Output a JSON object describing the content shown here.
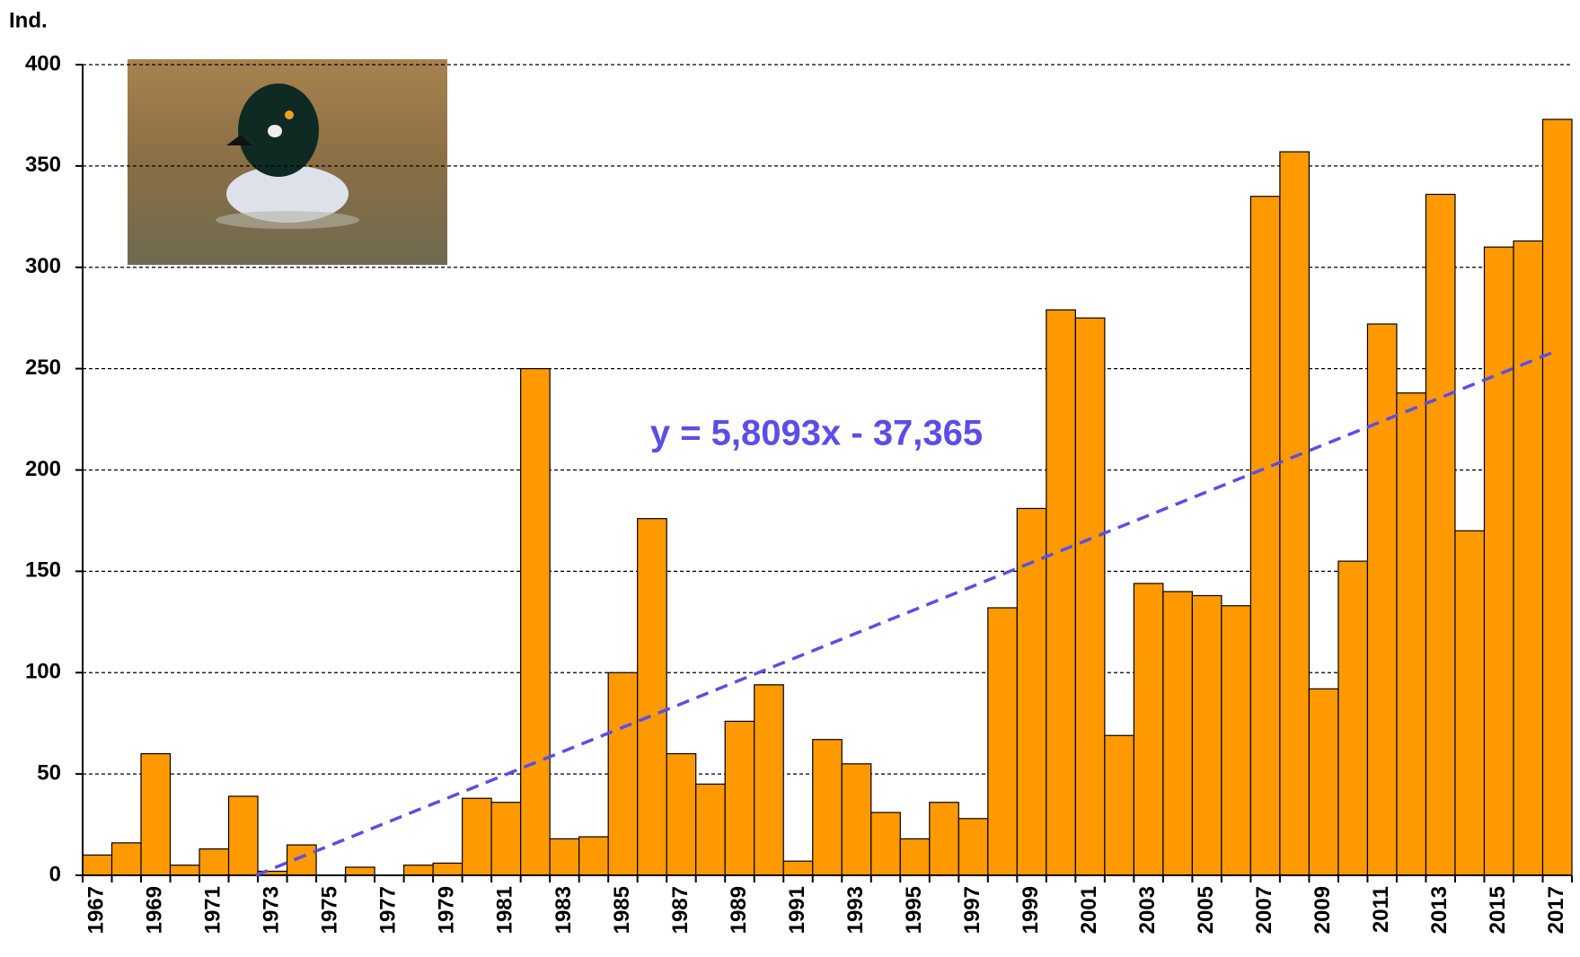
{
  "chart_data": {
    "type": "bar",
    "y_axis_label": "Ind.",
    "categories": [
      "1967",
      null,
      "1969",
      null,
      "1971",
      null,
      "1973",
      null,
      "1975",
      null,
      "1977",
      null,
      "1979",
      null,
      "1981",
      null,
      "1983",
      null,
      "1985",
      null,
      "1987",
      null,
      "1989",
      null,
      "1991",
      null,
      "1993",
      null,
      "1995",
      null,
      "1997",
      null,
      "1999",
      null,
      "2001",
      null,
      "2003",
      null,
      "2005",
      null,
      "2007",
      null,
      "2009",
      null,
      "2011",
      null,
      "2013",
      null,
      "2015",
      null,
      "2017"
    ],
    "values": [
      10,
      16,
      60,
      5,
      13,
      39,
      2,
      15,
      0,
      4,
      0,
      5,
      6,
      38,
      36,
      250,
      18,
      19,
      100,
      176,
      60,
      45,
      76,
      94,
      7,
      67,
      55,
      31,
      18,
      36,
      28,
      132,
      181,
      279,
      275,
      69,
      144,
      140,
      138,
      133,
      335,
      357,
      92,
      155,
      272,
      238,
      336,
      170,
      310,
      313,
      373
    ],
    "color": "#ff9900",
    "ylim": [
      0,
      400
    ],
    "yticks": [
      0,
      50,
      100,
      150,
      200,
      250,
      300,
      350,
      400
    ],
    "grid": true,
    "trendline": {
      "label": "y = 5,8093x - 37,365",
      "slope": 5.8093,
      "intercept": -37.365,
      "color": "#5b4ee6"
    }
  }
}
